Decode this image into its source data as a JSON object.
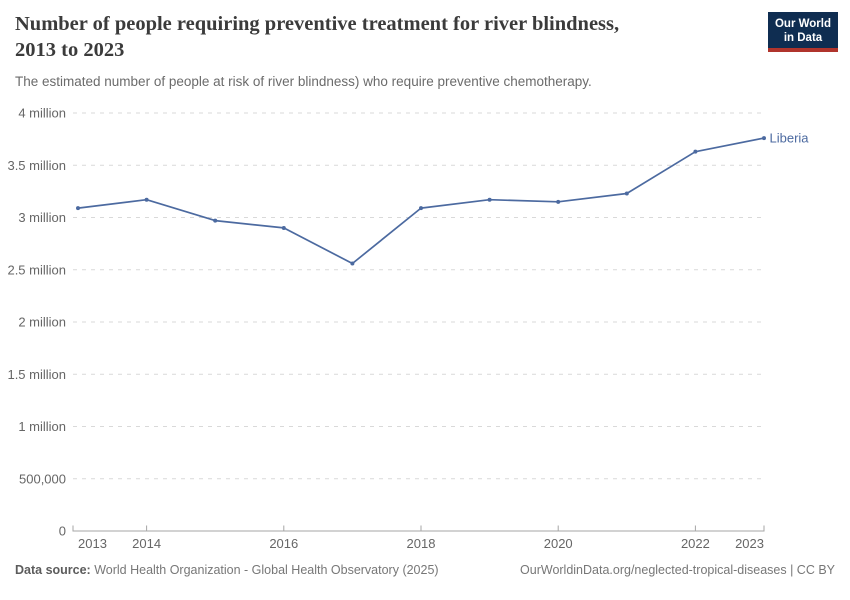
{
  "header": {
    "title_lines": [
      "Number of people requiring preventive treatment for river blindness,",
      "2013 to 2023"
    ],
    "subtitle": "The estimated number of people at risk of river blindness) who require preventive chemotherapy.",
    "logo": {
      "line1": "Our World",
      "line2": "in Data"
    }
  },
  "chart_data": {
    "type": "line",
    "title": "Number of people requiring preventive treatment for river blindness, 2013 to 2023",
    "x": [
      2013,
      2014,
      2015,
      2016,
      2017,
      2018,
      2019,
      2020,
      2021,
      2022,
      2023
    ],
    "series": [
      {
        "name": "Liberia",
        "color": "#4c6aa0",
        "values": [
          3090000,
          3170000,
          2970000,
          2900000,
          2560000,
          3090000,
          3170000,
          3150000,
          3230000,
          3630000,
          3760000
        ]
      }
    ],
    "ylim": [
      0,
      4000000
    ],
    "y_ticks": [
      {
        "value": 0,
        "label": "0"
      },
      {
        "value": 500000,
        "label": "500,000"
      },
      {
        "value": 1000000,
        "label": "1 million"
      },
      {
        "value": 1500000,
        "label": "1.5 million"
      },
      {
        "value": 2000000,
        "label": "2 million"
      },
      {
        "value": 2500000,
        "label": "2.5 million"
      },
      {
        "value": 3000000,
        "label": "3 million"
      },
      {
        "value": 3500000,
        "label": "3.5 million"
      },
      {
        "value": 4000000,
        "label": "4 million"
      }
    ],
    "x_ticks": [
      {
        "year": 2013,
        "label": "2013"
      },
      {
        "year": 2014,
        "label": "2014"
      },
      {
        "year": 2016,
        "label": "2016"
      },
      {
        "year": 2018,
        "label": "2018"
      },
      {
        "year": 2020,
        "label": "2020"
      },
      {
        "year": 2022,
        "label": "2022"
      },
      {
        "year": 2023,
        "label": "2023"
      }
    ],
    "grid": "horizontal-dashed",
    "legend_position": "end-of-line-label"
  },
  "colors": {
    "line": "#4c6aa0",
    "grid": "#d9d9d9",
    "axis": "#a5a5a5",
    "tick_text": "#666666",
    "title_text": "#3b3b3b",
    "subtitle_text": "#6b6b6b",
    "footer_text": "#777777",
    "logo_bg": "#0f2d51",
    "logo_accent": "#b0342c"
  },
  "footer": {
    "datasource_label": "Data source:",
    "datasource_value": " World Health Organization - Global Health Observatory (2025)",
    "credit": "OurWorldinData.org/neglected-tropical-diseases | CC BY"
  }
}
